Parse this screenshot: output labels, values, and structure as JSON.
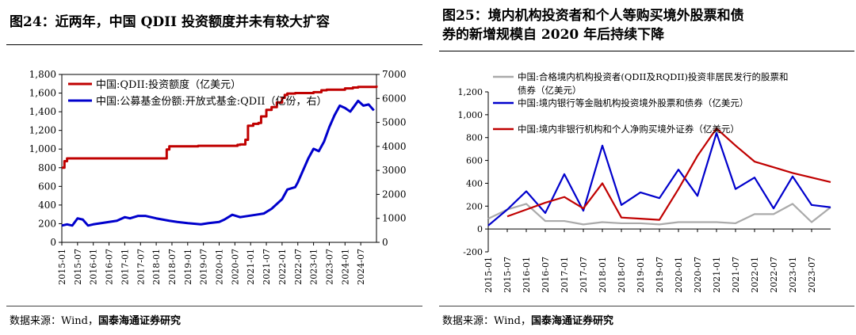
{
  "left": {
    "title": "图24：近两年，中国 QDII 投资额度并未有较大扩容",
    "source_prefix": "数据来源：Wind，",
    "source_org": "国泰海通证券研究"
  },
  "right": {
    "title_line1": "图25：境内机构投资者和个人等购买境外股票和债",
    "title_line2": "券的新增规模自 2020 年后持续下降",
    "source_prefix": "数据来源：Wind，",
    "source_org": "国泰海通证券研究"
  },
  "chart_data": [
    {
      "type": "line",
      "x_ticks": [
        "2015-01",
        "2015-07",
        "2016-01",
        "2016-07",
        "2017-01",
        "2017-07",
        "2018-01",
        "2018-07",
        "2019-01",
        "2019-07",
        "2020-01",
        "2020-07",
        "2021-01",
        "2021-07",
        "2022-01",
        "2022-07",
        "2023-01",
        "2023-07",
        "2024-01",
        "2024-07"
      ],
      "x_range": [
        "2015-01",
        "2025-01"
      ],
      "y_left": {
        "ticks": [
          "0",
          "200",
          "400",
          "600",
          "800",
          "1,000",
          "1,200",
          "1,400",
          "1,600",
          "1,800"
        ],
        "range": [
          0,
          1800
        ]
      },
      "y_right": {
        "ticks": [
          "0",
          "1000",
          "2000",
          "3000",
          "4000",
          "5000",
          "6000",
          "7000"
        ],
        "range": [
          0,
          7000
        ]
      },
      "legend": "top-left",
      "grid": false,
      "series": [
        {
          "name": "中国:QDII:投资额度（亿美元）",
          "axis": "left",
          "color": "#c00000",
          "step": true,
          "points": [
            [
              "2015-01",
              800
            ],
            [
              "2015-02",
              870
            ],
            [
              "2015-03",
              900
            ],
            [
              "2018-04",
              900
            ],
            [
              "2018-05",
              995
            ],
            [
              "2018-06",
              1030
            ],
            [
              "2019-05",
              1035
            ],
            [
              "2020-08",
              1045
            ],
            [
              "2020-09",
              1050
            ],
            [
              "2020-11",
              1100
            ],
            [
              "2020-12",
              1250
            ],
            [
              "2021-02",
              1270
            ],
            [
              "2021-04",
              1280
            ],
            [
              "2021-05",
              1350
            ],
            [
              "2021-07",
              1420
            ],
            [
              "2021-09",
              1450
            ],
            [
              "2021-11",
              1500
            ],
            [
              "2022-01",
              1550
            ],
            [
              "2022-02",
              1580
            ],
            [
              "2022-03",
              1595
            ],
            [
              "2022-06",
              1600
            ],
            [
              "2023-01",
              1610
            ],
            [
              "2023-04",
              1630
            ],
            [
              "2023-06",
              1637
            ],
            [
              "2024-01",
              1650
            ],
            [
              "2024-04",
              1660
            ],
            [
              "2024-06",
              1666
            ],
            [
              "2025-01",
              1680
            ]
          ]
        },
        {
          "name": "中国:公募基金份额:开放式基金:QDII（亿份，右）",
          "axis": "right",
          "color": "#0000cc",
          "step": false,
          "points": [
            [
              "2015-01",
              700
            ],
            [
              "2015-03",
              750
            ],
            [
              "2015-05",
              700
            ],
            [
              "2015-07",
              1000
            ],
            [
              "2015-09",
              950
            ],
            [
              "2015-11",
              700
            ],
            [
              "2016-01",
              750
            ],
            [
              "2016-04",
              800
            ],
            [
              "2016-07",
              850
            ],
            [
              "2016-10",
              900
            ],
            [
              "2017-01",
              1050
            ],
            [
              "2017-03",
              1000
            ],
            [
              "2017-06",
              1100
            ],
            [
              "2017-09",
              1100
            ],
            [
              "2018-01",
              1000
            ],
            [
              "2018-06",
              900
            ],
            [
              "2018-09",
              850
            ],
            [
              "2019-01",
              800
            ],
            [
              "2019-06",
              750
            ],
            [
              "2019-09",
              800
            ],
            [
              "2020-01",
              850
            ],
            [
              "2020-03",
              950
            ],
            [
              "2020-06",
              1150
            ],
            [
              "2020-09",
              1050
            ],
            [
              "2020-12",
              1100
            ],
            [
              "2021-03",
              1150
            ],
            [
              "2021-06",
              1200
            ],
            [
              "2021-09",
              1400
            ],
            [
              "2022-01",
              1800
            ],
            [
              "2022-03",
              2200
            ],
            [
              "2022-06",
              2300
            ],
            [
              "2022-07",
              2500
            ],
            [
              "2022-09",
              3000
            ],
            [
              "2022-11",
              3500
            ],
            [
              "2023-01",
              3900
            ],
            [
              "2023-03",
              3800
            ],
            [
              "2023-05",
              4200
            ],
            [
              "2023-07",
              4800
            ],
            [
              "2023-09",
              5300
            ],
            [
              "2023-11",
              5700
            ],
            [
              "2024-01",
              5600
            ],
            [
              "2024-03",
              5450
            ],
            [
              "2024-06",
              5900
            ],
            [
              "2024-08",
              5700
            ],
            [
              "2024-10",
              5750
            ],
            [
              "2024-12",
              5500
            ]
          ]
        }
      ]
    },
    {
      "type": "line",
      "x_ticks": [
        "2015-01",
        "2015-07",
        "2016-01",
        "2016-07",
        "2017-01",
        "2017-07",
        "2018-01",
        "2018-07",
        "2019-01",
        "2019-07",
        "2020-01",
        "2020-07",
        "2021-01",
        "2021-07",
        "2022-01",
        "2022-07",
        "2023-01",
        "2023-07"
      ],
      "x_range": [
        "2015-01",
        "2024-01"
      ],
      "y": {
        "ticks": [
          "-200",
          "0",
          "200",
          "400",
          "600",
          "800",
          "1,000",
          "1,200"
        ],
        "range": [
          -200,
          1200
        ]
      },
      "legend": "top-left",
      "grid": false,
      "series": [
        {
          "name": "中国:合格境内机构投资者(QDII及RQDII)投资非居民发行的股票和债券（亿美元）",
          "legend_line1": "中国:合格境内机构投资者(QDII及RQDII)投资非居民发行的股票和",
          "legend_line2": "债券（亿美元）",
          "color": "#aaaaaa",
          "points": [
            [
              "2015-01",
              90
            ],
            [
              "2015-07",
              170
            ],
            [
              "2016-01",
              220
            ],
            [
              "2016-07",
              70
            ],
            [
              "2017-01",
              70
            ],
            [
              "2017-07",
              40
            ],
            [
              "2018-01",
              60
            ],
            [
              "2018-07",
              50
            ],
            [
              "2019-01",
              50
            ],
            [
              "2019-07",
              40
            ],
            [
              "2020-01",
              60
            ],
            [
              "2020-07",
              60
            ],
            [
              "2021-01",
              60
            ],
            [
              "2021-07",
              50
            ],
            [
              "2022-01",
              130
            ],
            [
              "2022-07",
              130
            ],
            [
              "2023-01",
              220
            ],
            [
              "2023-07",
              60
            ],
            [
              "2024-01",
              190
            ]
          ]
        },
        {
          "name": "中国:境内银行等金融机构投资境外股票和债券（亿美元）",
          "color": "#0000cc",
          "points": [
            [
              "2015-01",
              30
            ],
            [
              "2015-07",
              170
            ],
            [
              "2016-01",
              330
            ],
            [
              "2016-07",
              140
            ],
            [
              "2017-01",
              480
            ],
            [
              "2017-07",
              160
            ],
            [
              "2018-01",
              730
            ],
            [
              "2018-07",
              210
            ],
            [
              "2019-01",
              320
            ],
            [
              "2019-07",
              270
            ],
            [
              "2020-01",
              520
            ],
            [
              "2020-07",
              290
            ],
            [
              "2021-01",
              840
            ],
            [
              "2021-07",
              350
            ],
            [
              "2022-01",
              450
            ],
            [
              "2022-07",
              180
            ],
            [
              "2023-01",
              460
            ],
            [
              "2023-07",
              210
            ],
            [
              "2024-01",
              190
            ]
          ]
        },
        {
          "name": "中国:境内非银行机构和个人净购买境外证券（亿美元）",
          "color": "#c00000",
          "points": [
            [
              "2015-07",
              110
            ],
            [
              "2016-01",
              170
            ],
            [
              "2016-07",
              230
            ],
            [
              "2017-01",
              280
            ],
            [
              "2017-07",
              180
            ],
            [
              "2018-01",
              400
            ],
            [
              "2018-07",
              100
            ],
            [
              "2019-01",
              90
            ],
            [
              "2019-07",
              80
            ],
            [
              "2020-01",
              350
            ],
            [
              "2020-07",
              640
            ],
            [
              "2021-01",
              880
            ],
            [
              "2021-07",
              730
            ],
            [
              "2022-01",
              590
            ],
            [
              "2022-07",
              540
            ],
            [
              "2023-01",
              490
            ],
            [
              "2023-07",
              450
            ],
            [
              "2024-01",
              410
            ]
          ]
        }
      ]
    }
  ]
}
